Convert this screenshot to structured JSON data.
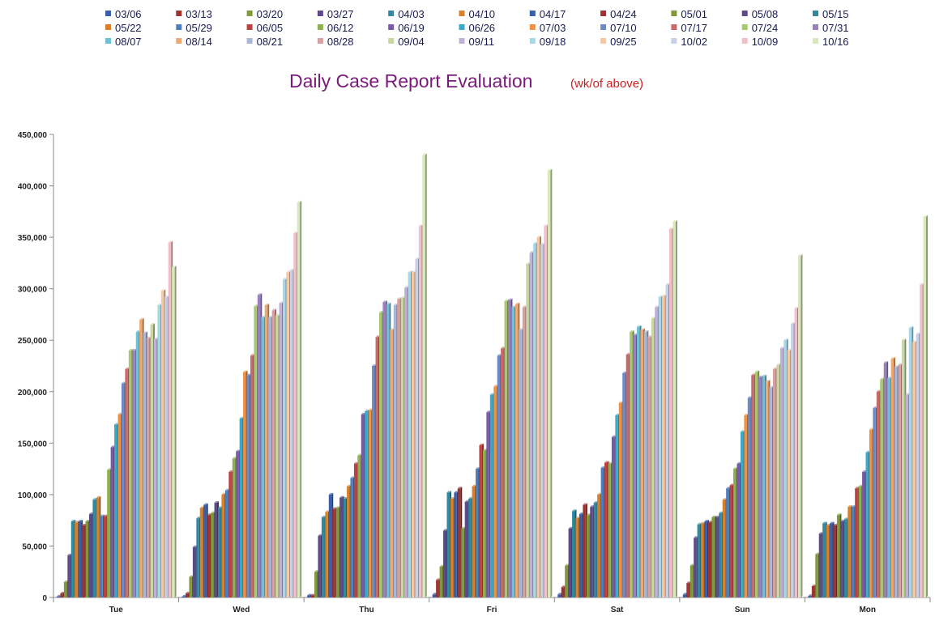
{
  "chart_data": {
    "type": "bar",
    "title": "Daily Case Report Evaluation",
    "subtitle": "(wk/of above)",
    "xlabel": "",
    "ylabel": "",
    "ylim": [
      0,
      450000
    ],
    "yticks": [
      "0",
      "50,000",
      "100,000",
      "150,000",
      "200,000",
      "250,000",
      "300,000",
      "350,000",
      "400,000",
      "450,000"
    ],
    "grid": false,
    "legend_position": "top",
    "categories": [
      "Tue",
      "Wed",
      "Thu",
      "Fri",
      "Sat",
      "Sun",
      "Mon"
    ],
    "series": [
      {
        "name": "03/06",
        "color": "#3a5fa8",
        "values": [
          1000,
          1000,
          2000,
          3000,
          3000,
          3000,
          1500
        ]
      },
      {
        "name": "03/13",
        "color": "#a03232",
        "values": [
          4000,
          4000,
          2000,
          17000,
          10000,
          14000,
          11000
        ]
      },
      {
        "name": "03/20",
        "color": "#7f9a3a",
        "values": [
          15000,
          20000,
          25000,
          30000,
          31000,
          31000,
          42000
        ]
      },
      {
        "name": "03/27",
        "color": "#5e4a8a",
        "values": [
          41000,
          49000,
          60000,
          65000,
          67000,
          58000,
          62000
        ]
      },
      {
        "name": "04/03",
        "color": "#2f8aa0",
        "values": [
          74000,
          77000,
          78000,
          102000,
          84000,
          71000,
          72000
        ]
      },
      {
        "name": "04/10",
        "color": "#d9802a",
        "values": [
          73000,
          87000,
          83000,
          96000,
          77000,
          72000,
          70000
        ]
      },
      {
        "name": "04/17",
        "color": "#3a5fa8",
        "values": [
          74000,
          90000,
          100000,
          102000,
          81000,
          74000,
          72000
        ]
      },
      {
        "name": "04/24",
        "color": "#a03232",
        "values": [
          70000,
          80000,
          86000,
          106000,
          90000,
          73000,
          70000
        ]
      },
      {
        "name": "05/01",
        "color": "#7f9a3a",
        "values": [
          74000,
          82000,
          87000,
          67000,
          80000,
          78000,
          80000
        ]
      },
      {
        "name": "05/08",
        "color": "#5e4a8a",
        "values": [
          81000,
          92000,
          97000,
          93000,
          88000,
          78000,
          74000
        ]
      },
      {
        "name": "05/15",
        "color": "#2f8aa0",
        "values": [
          95000,
          87000,
          96000,
          96000,
          92000,
          82000,
          76000
        ]
      },
      {
        "name": "05/22",
        "color": "#d9802a",
        "values": [
          97000,
          100000,
          108000,
          108000,
          100000,
          95000,
          88000
        ]
      },
      {
        "name": "05/29",
        "color": "#4a7fc0",
        "values": [
          79000,
          104000,
          116000,
          125000,
          126000,
          106000,
          88000
        ]
      },
      {
        "name": "06/05",
        "color": "#c04040",
        "values": [
          79000,
          122000,
          130000,
          148000,
          131000,
          109000,
          106000
        ]
      },
      {
        "name": "06/12",
        "color": "#8fb050",
        "values": [
          124000,
          135000,
          138000,
          143000,
          130000,
          125000,
          108000
        ]
      },
      {
        "name": "06/19",
        "color": "#7a5aa8",
        "values": [
          146000,
          142000,
          178000,
          180000,
          156000,
          130000,
          122000
        ]
      },
      {
        "name": "06/26",
        "color": "#3aaac8",
        "values": [
          168000,
          174000,
          181000,
          197000,
          177000,
          161000,
          141000
        ]
      },
      {
        "name": "07/03",
        "color": "#f09040",
        "values": [
          178000,
          219000,
          182000,
          205000,
          189000,
          177000,
          163000
        ]
      },
      {
        "name": "07/10",
        "color": "#6a8ac8",
        "values": [
          208000,
          216000,
          225000,
          235000,
          218000,
          194000,
          184000
        ]
      },
      {
        "name": "07/17",
        "color": "#c86a6a",
        "values": [
          222000,
          235000,
          253000,
          242000,
          236000,
          216000,
          200000
        ]
      },
      {
        "name": "07/24",
        "color": "#a8c870",
        "values": [
          240000,
          283000,
          277000,
          288000,
          258000,
          219000,
          212000
        ]
      },
      {
        "name": "07/31",
        "color": "#9a80c0",
        "values": [
          240000,
          294000,
          287000,
          289000,
          255000,
          214000,
          228000
        ]
      },
      {
        "name": "08/07",
        "color": "#70c0d8",
        "values": [
          258000,
          272000,
          285000,
          282000,
          263000,
          215000,
          213000
        ]
      },
      {
        "name": "08/14",
        "color": "#f0a870",
        "values": [
          270000,
          284000,
          260000,
          285000,
          260000,
          210000,
          232000
        ]
      },
      {
        "name": "08/21",
        "color": "#a8b8d8",
        "values": [
          257000,
          272000,
          284000,
          260000,
          258000,
          204000,
          224000
        ]
      },
      {
        "name": "08/28",
        "color": "#d8a0a0",
        "values": [
          252000,
          279000,
          290000,
          282000,
          253000,
          222000,
          226000
        ]
      },
      {
        "name": "09/04",
        "color": "#c8d8a0",
        "values": [
          265000,
          274000,
          291000,
          324000,
          271000,
          226000,
          250000
        ]
      },
      {
        "name": "09/11",
        "color": "#c0b0d8",
        "values": [
          251000,
          286000,
          301000,
          335000,
          282000,
          242000,
          197000
        ]
      },
      {
        "name": "09/18",
        "color": "#a8d8e8",
        "values": [
          284000,
          309000,
          316000,
          344000,
          292000,
          250000,
          262000
        ]
      },
      {
        "name": "09/25",
        "color": "#f8c8a0",
        "values": [
          298000,
          316000,
          316000,
          350000,
          293000,
          240000,
          248000
        ]
      },
      {
        "name": "10/02",
        "color": "#c8d0e8",
        "values": [
          292000,
          318000,
          329000,
          343000,
          304000,
          266000,
          256000
        ]
      },
      {
        "name": "10/09",
        "color": "#f0c0c8",
        "values": [
          345000,
          354000,
          361000,
          361000,
          358000,
          281000,
          304000
        ]
      },
      {
        "name": "10/16",
        "color": "#d8e8b8",
        "values": [
          321000,
          384000,
          430000,
          415000,
          365000,
          332000,
          370000
        ]
      }
    ]
  }
}
